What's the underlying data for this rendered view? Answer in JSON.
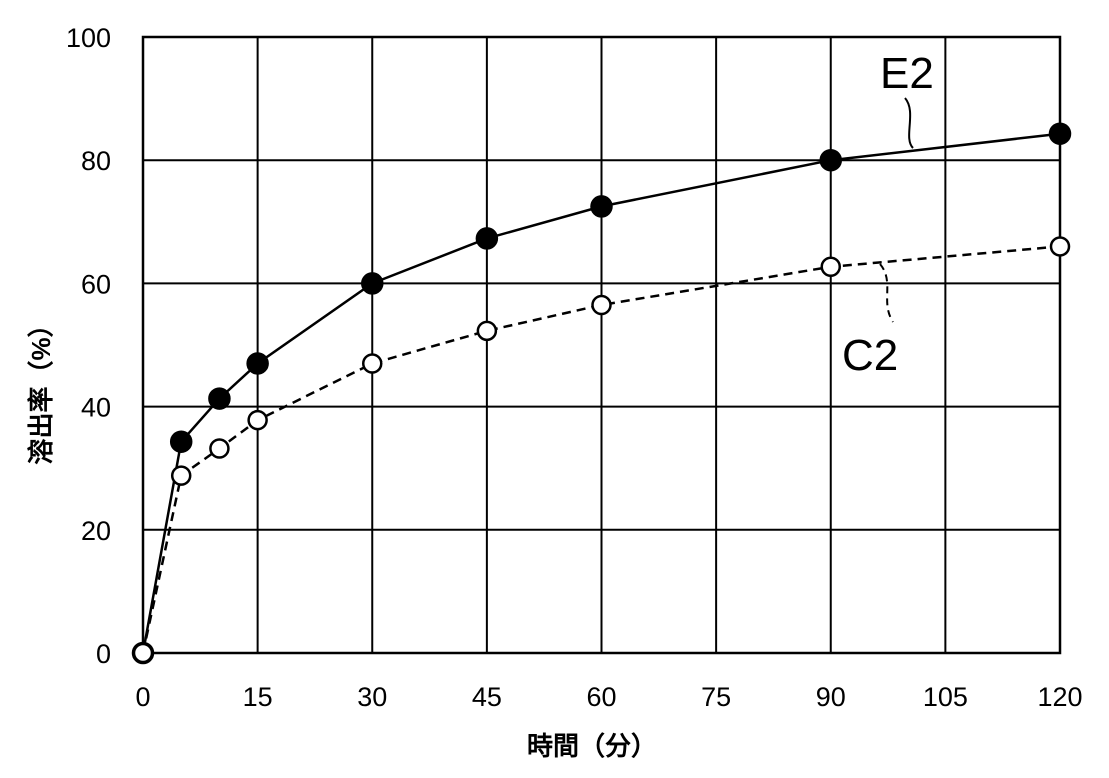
{
  "chart_data": {
    "type": "line",
    "x": [
      0,
      5,
      10,
      15,
      30,
      45,
      60,
      90,
      120
    ],
    "x_ticks": [
      0,
      15,
      30,
      45,
      60,
      75,
      90,
      105,
      120
    ],
    "y_ticks": [
      0,
      20,
      40,
      60,
      80,
      100
    ],
    "xlim": [
      0,
      120
    ],
    "ylim": [
      0,
      100
    ],
    "xlabel": "時間（分）",
    "ylabel": "溶出率（%）",
    "grid": true,
    "series": [
      {
        "name": "E2",
        "values": [
          0,
          34.3,
          41.3,
          47,
          60,
          67.3,
          72.5,
          80,
          84.3
        ],
        "marker": "filled-circle",
        "line_style": "solid",
        "color": "#000000"
      },
      {
        "name": "C2",
        "values": [
          0,
          28.8,
          33.2,
          37.8,
          47,
          52.3,
          56.5,
          62.7,
          66
        ],
        "marker": "open-circle",
        "line_style": "dashed",
        "color": "#000000"
      }
    ]
  }
}
